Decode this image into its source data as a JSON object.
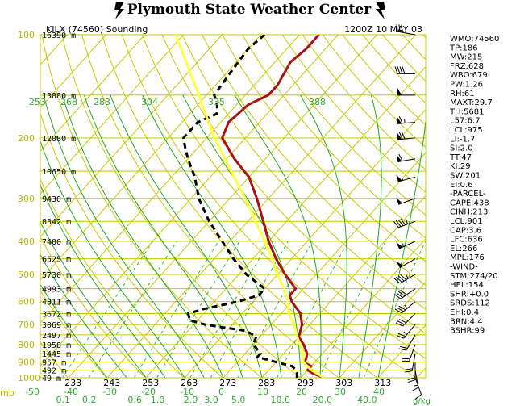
{
  "header": {
    "title": "Plymouth State Weather Center",
    "station": "KILX (74560) Sounding",
    "time": "1200Z 10 MAY 03"
  },
  "colors": {
    "temperature": "#aa1111",
    "dewpoint": "#000000",
    "parcel": "#ffff44",
    "isobar": "#c8c800",
    "dry_adiabat": "#c8c800",
    "moist_adiabat": "#22aa22",
    "mixing_ratio": "#33bb33"
  },
  "icons": {
    "left_logo": "thunderbolt-icon",
    "right_logo": "thunderbolt-icon"
  },
  "axes": {
    "pressure_unit": "mb",
    "temp_unit": "-50 ... 40 (C)",
    "mix_unit": "g/kg"
  },
  "chart_data": {
    "type": "line",
    "title": "KILX (74560) Sounding",
    "xlabel": "mb",
    "ylabel": "",
    "pressure_levels": [
      100,
      200,
      300,
      400,
      500,
      600,
      700,
      800,
      900,
      1000
    ],
    "pressure_labels": [
      "100",
      "200",
      "300",
      "400",
      "500",
      "600",
      "700",
      "800",
      "900",
      "1000"
    ],
    "height_labels": [
      {
        "p": 100,
        "text": "16390 m"
      },
      {
        "p": 150,
        "text": "13880 m"
      },
      {
        "p": 200,
        "text": "12080 m"
      },
      {
        "p": 250,
        "text": "10650 m"
      },
      {
        "p": 300,
        "text": "9430 m"
      },
      {
        "p": 350,
        "text": "8342 m"
      },
      {
        "p": 400,
        "text": "7400 m"
      },
      {
        "p": 450,
        "text": "6525 m"
      },
      {
        "p": 500,
        "text": "5730 m"
      },
      {
        "p": 550,
        "text": "4993 m"
      },
      {
        "p": 600,
        "text": "4311 m"
      },
      {
        "p": 650,
        "text": "3672 m"
      },
      {
        "p": 700,
        "text": "3069 m"
      },
      {
        "p": 750,
        "text": "2497 m"
      },
      {
        "p": 800,
        "text": "1958 m"
      },
      {
        "p": 850,
        "text": "1445 m"
      },
      {
        "p": 900,
        "text": "957 m"
      },
      {
        "p": 950,
        "text": "492 m"
      },
      {
        "p": 1000,
        "text": "49 m"
      }
    ],
    "temp_ticks": [
      "-50",
      "-40",
      "-30",
      "-20",
      "-10",
      "0",
      "10",
      "20",
      "30",
      "40"
    ],
    "temp_tick_values": [
      -50,
      -40,
      -30,
      -20,
      -10,
      0,
      10,
      20,
      30,
      40
    ],
    "theta_bottom_labels": [
      "233",
      "243",
      "253",
      "263",
      "273",
      "283",
      "293",
      "303",
      "313"
    ],
    "theta_bottom_values": [
      233,
      243,
      253,
      263,
      273,
      283,
      293,
      303,
      313
    ],
    "theta_upper_labels": [
      "253",
      "268",
      "283",
      "304",
      "335",
      "388"
    ],
    "mix_labels": [
      "0.1",
      "0.2",
      "0.6",
      "1.0",
      "2.0",
      "3.0",
      "5.0",
      "10.0",
      "20.0",
      "40.0"
    ],
    "mix_values": [
      0.1,
      0.2,
      0.6,
      1.0,
      2.0,
      3.0,
      5.0,
      10.0,
      20.0,
      40.0
    ],
    "series": [
      {
        "key": "temperature",
        "points": [
          [
            1000,
            26
          ],
          [
            970,
            22
          ],
          [
            950,
            20
          ],
          [
            925,
            20
          ],
          [
            900,
            17
          ],
          [
            880,
            17
          ],
          [
            850,
            16
          ],
          [
            800,
            13
          ],
          [
            760,
            10
          ],
          [
            730,
            9
          ],
          [
            700,
            8
          ],
          [
            650,
            5
          ],
          [
            600,
            0
          ],
          [
            575,
            -2
          ],
          [
            550,
            -2
          ],
          [
            500,
            -8
          ],
          [
            450,
            -14
          ],
          [
            400,
            -20
          ],
          [
            350,
            -26
          ],
          [
            300,
            -33
          ],
          [
            260,
            -40
          ],
          [
            230,
            -48
          ],
          [
            200,
            -56
          ],
          [
            180,
            -58
          ],
          [
            160,
            -57
          ],
          [
            150,
            -54
          ],
          [
            140,
            -54
          ],
          [
            120,
            -56
          ],
          [
            110,
            -55
          ],
          [
            100,
            -55
          ]
        ]
      },
      {
        "key": "dewpoint",
        "points": [
          [
            1000,
            19
          ],
          [
            970,
            18
          ],
          [
            950,
            17
          ],
          [
            925,
            15
          ],
          [
            900,
            10
          ],
          [
            870,
            4
          ],
          [
            850,
            4
          ],
          [
            800,
            0
          ],
          [
            760,
            -1
          ],
          [
            730,
            -5
          ],
          [
            700,
            -17
          ],
          [
            680,
            -22
          ],
          [
            650,
            -24
          ],
          [
            630,
            -21
          ],
          [
            600,
            -14
          ],
          [
            575,
            -10
          ],
          [
            550,
            -10
          ],
          [
            500,
            -18
          ],
          [
            450,
            -25
          ],
          [
            400,
            -32
          ],
          [
            350,
            -40
          ],
          [
            300,
            -48
          ],
          [
            260,
            -54
          ],
          [
            230,
            -60
          ],
          [
            210,
            -64
          ],
          [
            200,
            -66
          ],
          [
            180,
            -66
          ],
          [
            170,
            -63
          ],
          [
            160,
            -65
          ],
          [
            150,
            -68
          ],
          [
            130,
            -69
          ],
          [
            110,
            -70
          ],
          [
            100,
            -69
          ]
        ]
      },
      {
        "key": "parcel",
        "points": [
          [
            1000,
            26
          ],
          [
            950,
            21
          ],
          [
            900,
            17
          ],
          [
            850,
            15
          ],
          [
            800,
            12
          ],
          [
            750,
            9
          ],
          [
            700,
            6
          ],
          [
            650,
            2
          ],
          [
            600,
            -1
          ],
          [
            550,
            -5
          ],
          [
            500,
            -10
          ],
          [
            450,
            -15
          ],
          [
            400,
            -21
          ],
          [
            350,
            -28
          ],
          [
            300,
            -36
          ],
          [
            250,
            -46
          ],
          [
            200,
            -58
          ],
          [
            150,
            -72
          ],
          [
            100,
            -92
          ]
        ]
      }
    ]
  },
  "indices": [
    "WMO:74560",
    "TP:186",
    "MW:215",
    "FRZ:628",
    "WBO:679",
    "PW:1.26",
    "RH:61",
    "MAXT:29.7",
    "TH:5681",
    "L57:6.7",
    "LCL:975",
    "LI:-1.7",
    "SI:2.0",
    "TT:47",
    "KI:29",
    "SW:201",
    "EI:0.6",
    "-PARCEL-",
    "CAPE:438",
    "CINH:213",
    "LCL:901",
    "CAP:3.6",
    "LFC:636",
    "EL:266",
    "MPL:176",
    "-WIND-",
    "STM:274/20",
    "HEL:154",
    "SHR:+0.0",
    "SRDS:112",
    "EHI:0.4",
    "BRN:4.4",
    "BSHR:99"
  ],
  "winds": [
    {
      "p": 100,
      "dir": 280,
      "spd": 30
    },
    {
      "p": 130,
      "dir": 270,
      "spd": 40
    },
    {
      "p": 150,
      "dir": 270,
      "spd": 50
    },
    {
      "p": 180,
      "dir": 265,
      "spd": 65
    },
    {
      "p": 200,
      "dir": 265,
      "spd": 70
    },
    {
      "p": 230,
      "dir": 260,
      "spd": 60
    },
    {
      "p": 260,
      "dir": 255,
      "spd": 55
    },
    {
      "p": 300,
      "dir": 250,
      "spd": 50
    },
    {
      "p": 350,
      "dir": 250,
      "spd": 45
    },
    {
      "p": 400,
      "dir": 245,
      "spd": 55
    },
    {
      "p": 450,
      "dir": 240,
      "spd": 50
    },
    {
      "p": 500,
      "dir": 240,
      "spd": 45
    },
    {
      "p": 550,
      "dir": 235,
      "spd": 40
    },
    {
      "p": 600,
      "dir": 230,
      "spd": 35
    },
    {
      "p": 650,
      "dir": 225,
      "spd": 30
    },
    {
      "p": 700,
      "dir": 220,
      "spd": 25
    },
    {
      "p": 750,
      "dir": 210,
      "spd": 20
    },
    {
      "p": 800,
      "dir": 200,
      "spd": 20
    },
    {
      "p": 850,
      "dir": 190,
      "spd": 20
    },
    {
      "p": 900,
      "dir": 180,
      "spd": 20
    },
    {
      "p": 950,
      "dir": 170,
      "spd": 15
    },
    {
      "p": 1000,
      "dir": 160,
      "spd": 10
    }
  ]
}
